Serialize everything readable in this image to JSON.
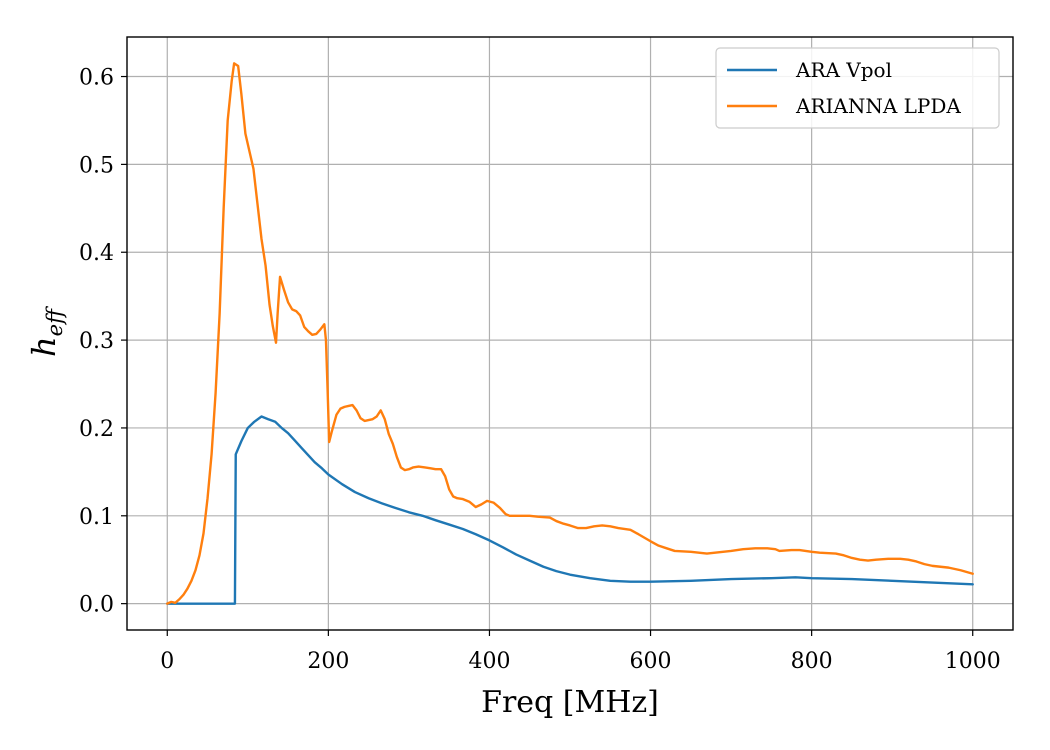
{
  "chart_data": {
    "type": "line",
    "xlabel": "Freq [MHz]",
    "ylabel": {
      "main": "h",
      "sub": "eff"
    },
    "xlim": [
      -50,
      1050
    ],
    "ylim": [
      -0.03,
      0.645
    ],
    "xticks": [
      0,
      200,
      400,
      600,
      800,
      1000
    ],
    "xtick_labels": [
      "0",
      "200",
      "400",
      "600",
      "800",
      "1000"
    ],
    "yticks": [
      0.0,
      0.1,
      0.2,
      0.3,
      0.4,
      0.5,
      0.6
    ],
    "ytick_labels": [
      "0.0",
      "0.1",
      "0.2",
      "0.3",
      "0.4",
      "0.5",
      "0.6"
    ],
    "grid": true,
    "legend_position": "top-right",
    "series": [
      {
        "name": "ARA Vpol",
        "color": "#1f77b4",
        "points": [
          [
            0,
            0.0
          ],
          [
            20,
            0.0
          ],
          [
            40,
            0.0
          ],
          [
            60,
            0.0
          ],
          [
            84,
            0.0
          ],
          [
            85,
            0.17
          ],
          [
            92,
            0.185
          ],
          [
            100,
            0.2
          ],
          [
            108,
            0.207
          ],
          [
            117,
            0.213
          ],
          [
            125,
            0.21
          ],
          [
            134,
            0.207
          ],
          [
            142,
            0.2
          ],
          [
            150,
            0.194
          ],
          [
            158,
            0.186
          ],
          [
            167,
            0.177
          ],
          [
            175,
            0.169
          ],
          [
            183,
            0.161
          ],
          [
            192,
            0.154
          ],
          [
            200,
            0.147
          ],
          [
            217,
            0.136
          ],
          [
            233,
            0.127
          ],
          [
            250,
            0.12
          ],
          [
            267,
            0.114
          ],
          [
            283,
            0.109
          ],
          [
            300,
            0.104
          ],
          [
            317,
            0.1
          ],
          [
            333,
            0.095
          ],
          [
            350,
            0.09
          ],
          [
            367,
            0.085
          ],
          [
            383,
            0.079
          ],
          [
            400,
            0.072
          ],
          [
            417,
            0.064
          ],
          [
            433,
            0.056
          ],
          [
            450,
            0.049
          ],
          [
            467,
            0.042
          ],
          [
            483,
            0.037
          ],
          [
            500,
            0.033
          ],
          [
            525,
            0.029
          ],
          [
            550,
            0.026
          ],
          [
            575,
            0.025
          ],
          [
            600,
            0.025
          ],
          [
            650,
            0.026
          ],
          [
            700,
            0.028
          ],
          [
            750,
            0.029
          ],
          [
            780,
            0.03
          ],
          [
            800,
            0.029
          ],
          [
            850,
            0.028
          ],
          [
            900,
            0.026
          ],
          [
            950,
            0.024
          ],
          [
            1000,
            0.022
          ]
        ]
      },
      {
        "name": "ARIANNA LPDA",
        "color": "#ff7f0e",
        "points": [
          [
            0,
            0.0
          ],
          [
            5,
            0.002
          ],
          [
            10,
            0.001
          ],
          [
            15,
            0.005
          ],
          [
            20,
            0.01
          ],
          [
            25,
            0.017
          ],
          [
            30,
            0.026
          ],
          [
            35,
            0.038
          ],
          [
            40,
            0.055
          ],
          [
            45,
            0.08
          ],
          [
            50,
            0.12
          ],
          [
            55,
            0.17
          ],
          [
            60,
            0.24
          ],
          [
            65,
            0.33
          ],
          [
            70,
            0.45
          ],
          [
            75,
            0.55
          ],
          [
            80,
            0.595
          ],
          [
            83,
            0.615
          ],
          [
            88,
            0.612
          ],
          [
            92,
            0.58
          ],
          [
            97,
            0.535
          ],
          [
            102,
            0.515
          ],
          [
            107,
            0.495
          ],
          [
            112,
            0.455
          ],
          [
            117,
            0.415
          ],
          [
            122,
            0.385
          ],
          [
            127,
            0.34
          ],
          [
            131,
            0.316
          ],
          [
            135,
            0.297
          ],
          [
            137,
            0.33
          ],
          [
            140,
            0.372
          ],
          [
            145,
            0.357
          ],
          [
            150,
            0.343
          ],
          [
            155,
            0.335
          ],
          [
            160,
            0.333
          ],
          [
            165,
            0.328
          ],
          [
            170,
            0.315
          ],
          [
            175,
            0.31
          ],
          [
            180,
            0.306
          ],
          [
            185,
            0.307
          ],
          [
            190,
            0.312
          ],
          [
            195,
            0.318
          ],
          [
            197,
            0.3
          ],
          [
            199,
            0.245
          ],
          [
            201,
            0.184
          ],
          [
            204,
            0.195
          ],
          [
            210,
            0.215
          ],
          [
            215,
            0.222
          ],
          [
            220,
            0.224
          ],
          [
            225,
            0.225
          ],
          [
            230,
            0.226
          ],
          [
            235,
            0.22
          ],
          [
            240,
            0.211
          ],
          [
            245,
            0.208
          ],
          [
            250,
            0.209
          ],
          [
            255,
            0.21
          ],
          [
            260,
            0.213
          ],
          [
            265,
            0.22
          ],
          [
            270,
            0.21
          ],
          [
            275,
            0.193
          ],
          [
            280,
            0.182
          ],
          [
            285,
            0.167
          ],
          [
            290,
            0.155
          ],
          [
            295,
            0.152
          ],
          [
            300,
            0.153
          ],
          [
            305,
            0.155
          ],
          [
            312,
            0.156
          ],
          [
            320,
            0.155
          ],
          [
            327,
            0.154
          ],
          [
            333,
            0.153
          ],
          [
            340,
            0.153
          ],
          [
            345,
            0.145
          ],
          [
            350,
            0.13
          ],
          [
            355,
            0.122
          ],
          [
            360,
            0.12
          ],
          [
            367,
            0.119
          ],
          [
            375,
            0.116
          ],
          [
            383,
            0.11
          ],
          [
            390,
            0.113
          ],
          [
            397,
            0.117
          ],
          [
            405,
            0.115
          ],
          [
            413,
            0.109
          ],
          [
            420,
            0.102
          ],
          [
            425,
            0.1
          ],
          [
            433,
            0.1
          ],
          [
            450,
            0.1
          ],
          [
            460,
            0.099
          ],
          [
            475,
            0.098
          ],
          [
            483,
            0.094
          ],
          [
            492,
            0.091
          ],
          [
            500,
            0.089
          ],
          [
            510,
            0.086
          ],
          [
            520,
            0.086
          ],
          [
            530,
            0.088
          ],
          [
            540,
            0.089
          ],
          [
            550,
            0.088
          ],
          [
            560,
            0.086
          ],
          [
            575,
            0.084
          ],
          [
            585,
            0.079
          ],
          [
            600,
            0.071
          ],
          [
            610,
            0.066
          ],
          [
            620,
            0.063
          ],
          [
            630,
            0.06
          ],
          [
            650,
            0.059
          ],
          [
            670,
            0.057
          ],
          [
            680,
            0.058
          ],
          [
            700,
            0.06
          ],
          [
            715,
            0.062
          ],
          [
            730,
            0.063
          ],
          [
            745,
            0.063
          ],
          [
            755,
            0.062
          ],
          [
            760,
            0.06
          ],
          [
            775,
            0.061
          ],
          [
            785,
            0.061
          ],
          [
            800,
            0.059
          ],
          [
            810,
            0.058
          ],
          [
            830,
            0.057
          ],
          [
            840,
            0.055
          ],
          [
            850,
            0.052
          ],
          [
            860,
            0.05
          ],
          [
            870,
            0.049
          ],
          [
            880,
            0.05
          ],
          [
            895,
            0.051
          ],
          [
            910,
            0.051
          ],
          [
            920,
            0.05
          ],
          [
            930,
            0.048
          ],
          [
            940,
            0.045
          ],
          [
            950,
            0.043
          ],
          [
            970,
            0.041
          ],
          [
            985,
            0.038
          ],
          [
            1000,
            0.034
          ]
        ]
      }
    ]
  }
}
